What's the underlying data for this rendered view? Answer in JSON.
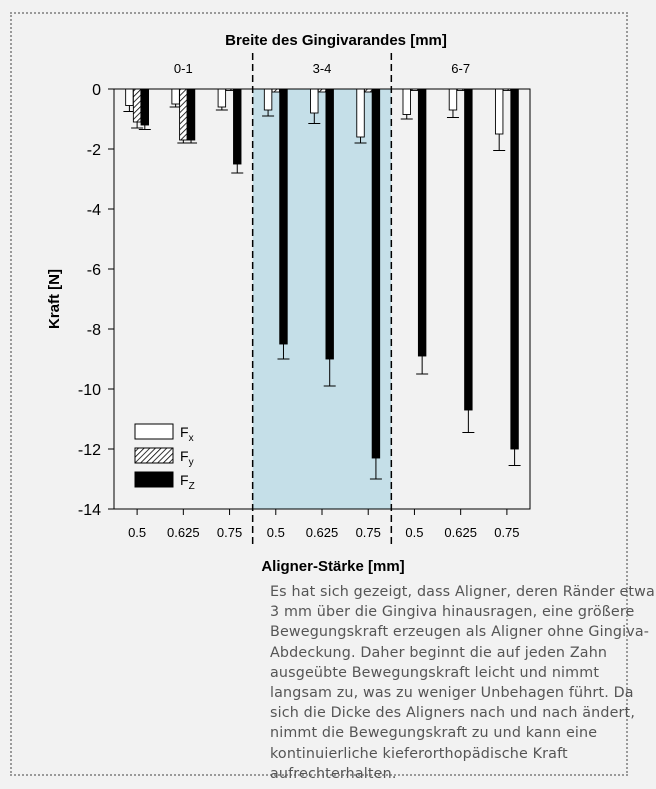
{
  "caption": "Es hat sich gezeigt, dass Aligner, deren Ränder etwa 3 mm über die Gingiva hinausragen, eine größere Bewegungskraft erzeugen als Aligner ohne Gingiva-Abdeckung. Daher beginnt die auf jeden Zahn ausgeübte Bewegungskraft leicht und nimmt langsam zu, was zu weniger Unbehagen führt. Da sich die Dicke des Aligners nach und nach ändert, nimmt die Bewegungskraft zu und kann eine kontinuierliche kieferorthopädische Kraft aufrechterhalten.",
  "chart_data": {
    "type": "bar",
    "top_title": "Breite des Gingivarandes [mm]",
    "xlabel": "Aligner-Stärke [mm]",
    "ylabel": "Kraft [N]",
    "ylim": [
      -14,
      0
    ],
    "yticks": [
      0,
      -2,
      -4,
      -6,
      -8,
      -10,
      -12,
      -14
    ],
    "groups": [
      {
        "label": "0-1",
        "highlighted": false
      },
      {
        "label": "3-4",
        "highlighted": true
      },
      {
        "label": "6-7",
        "highlighted": false
      }
    ],
    "categories": [
      "0.5",
      "0.625",
      "0.75"
    ],
    "legend_position": "bottom-left",
    "highlight_color": "#c5dfe8",
    "series": [
      {
        "name": "F_x",
        "legend_main": "F",
        "legend_sub": "x",
        "fill": "white",
        "values": [
          [
            -0.55,
            -0.5,
            -0.6
          ],
          [
            -0.7,
            -0.8,
            -1.6
          ],
          [
            -0.85,
            -0.7,
            -1.5
          ]
        ],
        "errors": [
          [
            0.2,
            0.1,
            0.1
          ],
          [
            0.2,
            0.35,
            0.2
          ],
          [
            0.15,
            0.25,
            0.55
          ]
        ]
      },
      {
        "name": "F_y",
        "legend_main": "F",
        "legend_sub": "y",
        "fill": "hatched",
        "values": [
          [
            -1.1,
            -1.7,
            -0.05
          ],
          [
            -0.1,
            -0.1,
            -0.1
          ],
          [
            -0.05,
            -0.05,
            -0.05
          ]
        ],
        "errors": [
          [
            0.2,
            0.1,
            0.0
          ],
          [
            0.0,
            0.0,
            0.0
          ],
          [
            0.0,
            0.0,
            0.0
          ]
        ]
      },
      {
        "name": "F_Z",
        "legend_main": "F",
        "legend_sub": "Z",
        "fill": "black",
        "values": [
          [
            -1.2,
            -1.7,
            -2.5
          ],
          [
            -8.5,
            -9.0,
            -12.3
          ],
          [
            -8.9,
            -10.7,
            -12.0
          ]
        ],
        "errors": [
          [
            0.15,
            0.1,
            0.3
          ],
          [
            0.5,
            0.9,
            0.7
          ],
          [
            0.6,
            0.75,
            0.55
          ]
        ]
      }
    ]
  }
}
